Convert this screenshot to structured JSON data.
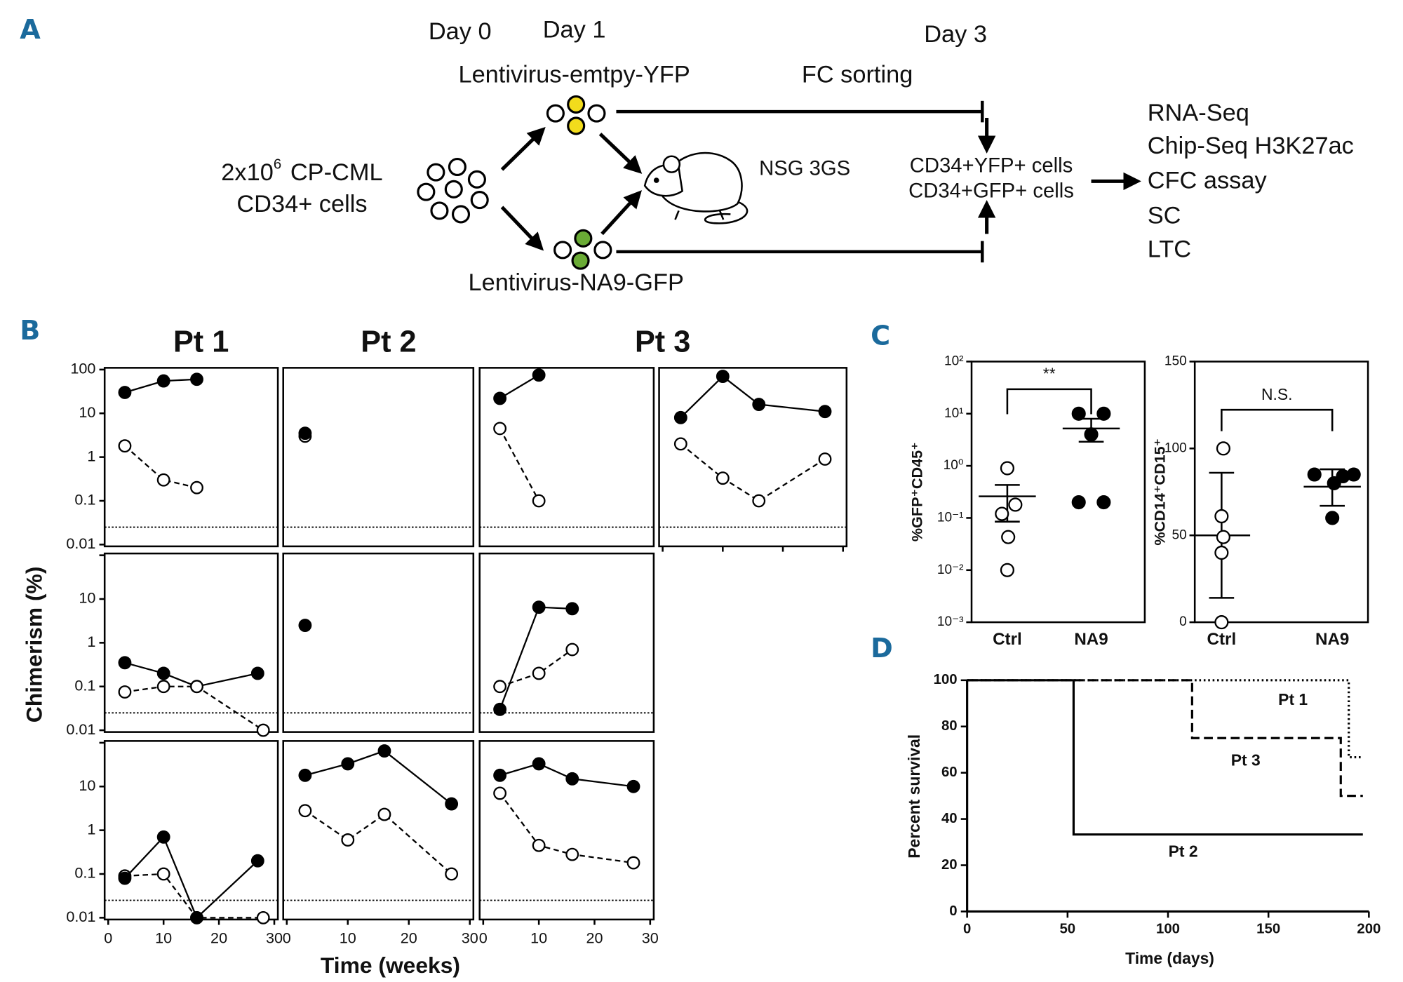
{
  "panel_labels": [
    "A",
    "B",
    "C",
    "D"
  ],
  "panel_a": {
    "day0": "Day 0",
    "day1": "Day 1",
    "day3": "Day 3",
    "vector_ctrl": "Lentivirus-emtpy-YFP",
    "vector_na9": "Lentivirus-NA9-GFP",
    "sorting": "FC sorting",
    "input_count": "2x10",
    "input_exponent": "6",
    "input_type": "CP-CML",
    "input_cells": "CD34+ cells",
    "mouse": "NSG 3GS",
    "sorted": [
      "CD34+YFP+ cells",
      "CD34+GFP+ cells"
    ],
    "assays": [
      "RNA-Seq",
      "Chip-Seq H3K27ac",
      "CFC assay",
      "SC",
      "LTC"
    ]
  },
  "chart_data": [
    {
      "type": "line",
      "column_titles": [
        "Pt 1",
        "Pt 2",
        "Pt 3"
      ],
      "ylabel": "Chimerism (%)",
      "xlabel": "Time (weeks)",
      "log_y": true,
      "xlim": [
        0,
        30
      ],
      "ylim": [
        0.01,
        100
      ],
      "xticks": [
        0,
        10,
        20,
        30
      ],
      "yticks": [
        0.01,
        0.1,
        1,
        10,
        100
      ],
      "threshold": 0.025,
      "panels": [
        [
          {
            "series": [
              {
                "marker": "filled",
                "line": "solid",
                "x": [
                  3,
                  10,
                  16
                ],
                "values": [
                  30,
                  55,
                  60
                ]
              },
              {
                "marker": "open",
                "line": "dashed",
                "x": [
                  3,
                  10,
                  16
                ],
                "values": [
                  1.8,
                  0.3,
                  0.2
                ]
              }
            ]
          },
          {
            "series": [
              {
                "marker": "open",
                "line": "dashed",
                "x": [
                  3
                ],
                "values": [
                  3
                ]
              },
              {
                "marker": "filled",
                "line": "solid",
                "x": [
                  3
                ],
                "values": [
                  3.5
                ]
              }
            ]
          },
          {
            "series": [
              {
                "marker": "filled",
                "line": "solid",
                "x": [
                  3,
                  10
                ],
                "values": [
                  22,
                  75
                ]
              },
              {
                "marker": "open",
                "line": "dashed",
                "x": [
                  3,
                  10
                ],
                "values": [
                  4.5,
                  0.1
                ]
              }
            ]
          },
          {
            "series": [
              {
                "marker": "filled",
                "line": "solid",
                "x": [
                  3,
                  10,
                  16,
                  27
                ],
                "values": [
                  8,
                  70,
                  16,
                  11
                ]
              },
              {
                "marker": "open",
                "line": "dashed",
                "x": [
                  3,
                  10,
                  16,
                  27
                ],
                "values": [
                  2,
                  0.33,
                  0.1,
                  0.9
                ]
              }
            ]
          }
        ],
        [
          {
            "series": [
              {
                "marker": "filled",
                "line": "solid",
                "x": [
                  3,
                  10,
                  16,
                  27
                ],
                "values": [
                  0.35,
                  0.2,
                  0.1,
                  0.2
                ]
              },
              {
                "marker": "open",
                "line": "dashed",
                "x": [
                  3,
                  10,
                  16,
                  28
                ],
                "values": [
                  0.075,
                  0.1,
                  0.1,
                  0.01
                ]
              }
            ]
          },
          {
            "series": [
              {
                "marker": "filled",
                "line": "solid",
                "x": [
                  3
                ],
                "values": [
                  2.5
                ]
              }
            ]
          },
          {
            "series": [
              {
                "marker": "filled",
                "line": "solid",
                "x": [
                  3,
                  10,
                  16
                ],
                "values": [
                  0.03,
                  6.5,
                  6
                ]
              },
              {
                "marker": "open",
                "line": "dashed",
                "x": [
                  3,
                  10,
                  16
                ],
                "values": [
                  0.1,
                  0.2,
                  0.7
                ]
              }
            ]
          }
        ],
        [
          {
            "series": [
              {
                "marker": "open",
                "line": "dashed",
                "x": [
                  3,
                  10,
                  16,
                  28
                ],
                "values": [
                  0.09,
                  0.1,
                  0.01,
                  0.01
                ]
              },
              {
                "marker": "filled",
                "line": "solid",
                "x": [
                  3,
                  10,
                  16,
                  27
                ],
                "values": [
                  0.08,
                  0.7,
                  0.01,
                  0.2
                ]
              }
            ]
          },
          {
            "series": [
              {
                "marker": "filled",
                "line": "solid",
                "x": [
                  3,
                  10,
                  16,
                  27
                ],
                "values": [
                  18,
                  33,
                  65,
                  4
                ]
              },
              {
                "marker": "open",
                "line": "dashed",
                "x": [
                  3,
                  10,
                  16,
                  27
                ],
                "values": [
                  2.8,
                  0.6,
                  2.3,
                  0.1
                ]
              }
            ]
          },
          {
            "series": [
              {
                "marker": "filled",
                "line": "solid",
                "x": [
                  3,
                  10,
                  16,
                  27
                ],
                "values": [
                  18,
                  33,
                  15,
                  10
                ]
              },
              {
                "marker": "open",
                "line": "dashed",
                "x": [
                  3,
                  10,
                  16,
                  27
                ],
                "values": [
                  7,
                  0.45,
                  0.28,
                  0.18
                ]
              }
            ]
          }
        ]
      ]
    },
    {
      "type": "dotplot",
      "ylabel": "%GFP⁺CD45⁺",
      "log_y": true,
      "ylim": [
        0.001,
        100
      ],
      "yticks": [
        {
          "value": 0.001,
          "label": "10⁻³"
        },
        {
          "value": 0.01,
          "label": "10⁻²"
        },
        {
          "value": 0.1,
          "label": "10⁻¹"
        },
        {
          "value": 1,
          "label": "10⁰"
        },
        {
          "value": 10,
          "label": "10¹"
        },
        {
          "value": 100,
          "label": "10²"
        }
      ],
      "categories": [
        "Ctrl",
        "NA9"
      ],
      "annotation": "**",
      "groups": [
        {
          "marker": "open",
          "values": [
            0.9,
            0.18,
            0.12,
            0.043,
            0.01
          ],
          "mean": 0.26,
          "lower": 0.085,
          "upper": 0.43
        },
        {
          "marker": "filled",
          "values": [
            10,
            10,
            4,
            0.2,
            0.2
          ],
          "mean": 5.2,
          "lower": 2.9,
          "upper": 8
        }
      ]
    },
    {
      "type": "dotplot",
      "ylabel": "%CD14⁺CD15⁺",
      "log_y": false,
      "ylim": [
        0,
        150
      ],
      "yticks": [
        0,
        50,
        100,
        150
      ],
      "categories": [
        "Ctrl",
        "NA9"
      ],
      "annotation": "N.S.",
      "groups": [
        {
          "marker": "open",
          "values": [
            100,
            61,
            49,
            40,
            0
          ],
          "mean": 50,
          "lower": 14,
          "upper": 86
        },
        {
          "marker": "filled",
          "values": [
            85,
            80,
            85,
            84,
            60
          ],
          "mean": 78,
          "lower": 67,
          "upper": 88
        }
      ]
    },
    {
      "type": "step",
      "xlabel": "Time (days)",
      "ylabel": "Percent survival",
      "xlim": [
        0,
        200
      ],
      "ylim": [
        0,
        100
      ],
      "xticks": [
        0,
        50,
        100,
        150,
        200
      ],
      "yticks": [
        0,
        20,
        40,
        60,
        80,
        100
      ],
      "series": [
        {
          "name": "Pt 1",
          "dash": "dotted",
          "x": [
            0,
            190,
            197
          ],
          "values": [
            100,
            66.7,
            66.7
          ]
        },
        {
          "name": "Pt 2",
          "dash": "solid",
          "x": [
            0,
            53,
            197
          ],
          "values": [
            100,
            33.3,
            33.3
          ]
        },
        {
          "name": "Pt 3",
          "dash": "dashed",
          "x": [
            0,
            112,
            186,
            197
          ],
          "values": [
            100,
            75,
            50,
            50
          ]
        }
      ]
    }
  ]
}
